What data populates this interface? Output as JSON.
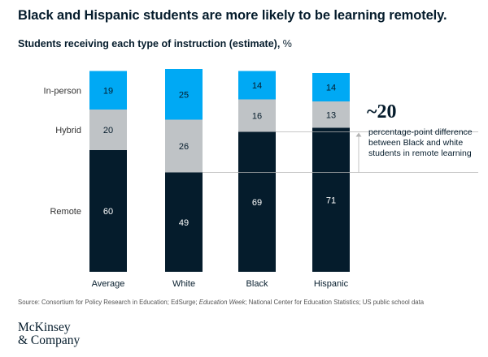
{
  "title": "Black and Hispanic students are more likely to be learning remotely.",
  "subtitle": "Students receiving each type of instruction (estimate),",
  "subtitle_unit": "%",
  "colors": {
    "remote": "#051c2c",
    "hybrid": "#bfc3c6",
    "in_person": "#00a9f4"
  },
  "chart_data": {
    "type": "bar",
    "stacked": true,
    "categories": [
      "Average",
      "White",
      "Black",
      "Hispanic"
    ],
    "series": [
      {
        "name": "Remote",
        "values": [
          60,
          49,
          69,
          71
        ]
      },
      {
        "name": "Hybrid",
        "values": [
          20,
          26,
          16,
          13
        ]
      },
      {
        "name": "In-person",
        "values": [
          19,
          25,
          14,
          14
        ]
      }
    ]
  },
  "annotation": {
    "value": "~20",
    "text": "percentage-point difference between Black and white students in remote learning"
  },
  "source": {
    "prefix": "Source: Consortium for Policy Research in Education; EdSurge; ",
    "italic": "Education Week",
    "suffix": "; National Center for Education Statistics; US public school data"
  },
  "logo": {
    "line1": "McKinsey",
    "line2": "& Company"
  }
}
